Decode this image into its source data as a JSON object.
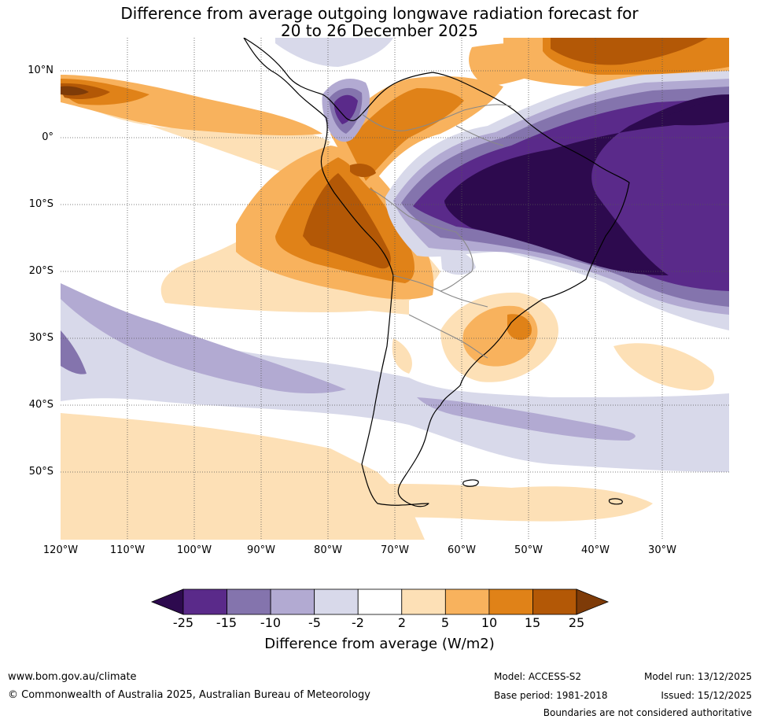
{
  "title": {
    "line1": "Difference from average outgoing longwave radiation forecast for",
    "line2": "20 to 26 December 2025"
  },
  "map": {
    "lat_labels": [
      "10°N",
      "0°",
      "10°S",
      "20°S",
      "30°S",
      "40°S",
      "50°S"
    ],
    "lon_labels": [
      "120°W",
      "110°W",
      "100°W",
      "90°W",
      "80°W",
      "70°W",
      "60°W",
      "50°W",
      "40°W",
      "30°W"
    ],
    "extent": {
      "lon": [
        -120,
        -20
      ],
      "lat": [
        -60,
        15
      ]
    }
  },
  "colorbar": {
    "ticks": [
      "-25",
      "-15",
      "-10",
      "-5",
      "-2",
      "2",
      "5",
      "10",
      "15",
      "25"
    ],
    "colors": [
      "#2d0a4e",
      "#5a2a8a",
      "#8474ad",
      "#b2aad2",
      "#d8d9ea",
      "#ffffff",
      "#fde0b6",
      "#f8b25d",
      "#e08218",
      "#b35806",
      "#7e3b08"
    ],
    "label": "Difference from average (W/m2)"
  },
  "footer": {
    "website": "www.bom.gov.au/climate",
    "copyright": "© Commonwealth of Australia 2025, Australian Bureau of Meteorology",
    "model": "Model: ACCESS-S2",
    "base_period": "Base period: 1981-2018",
    "model_run": "Model run: 13/12/2025",
    "issued": "Issued: 15/12/2025",
    "disclaimer": "Boundaries are not considered authoritative"
  }
}
